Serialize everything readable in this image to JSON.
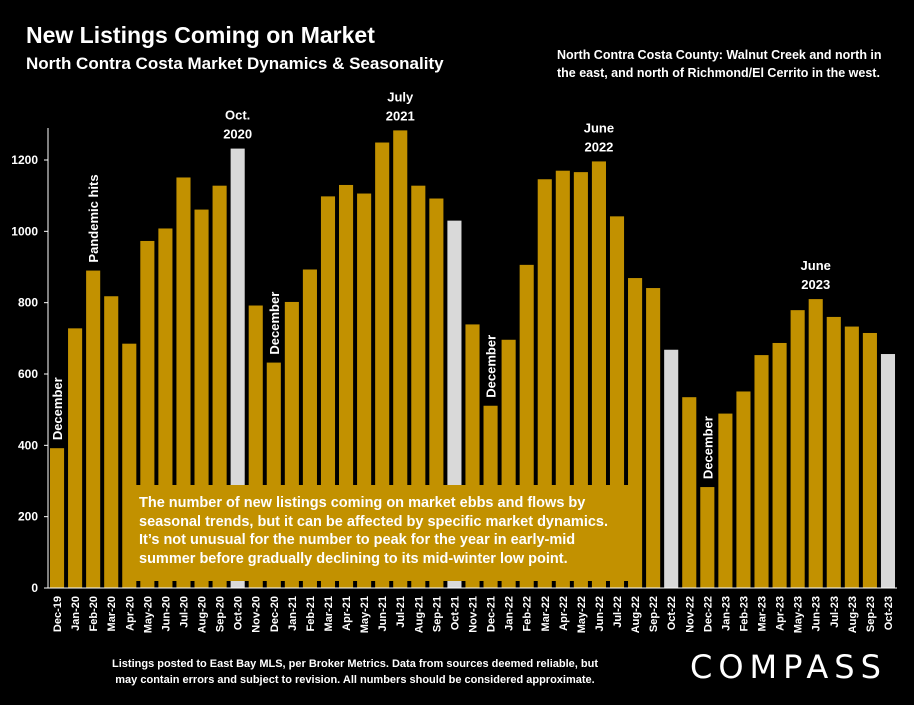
{
  "header": {
    "title": "New Listings Coming on Market",
    "subtitle": "North Contra Costa Market Dynamics & Seasonality",
    "region_note": "North Contra Costa County: Walnut Creek and north in the east, and north of Richmond/El Cerrito in the west."
  },
  "callout": {
    "text": "The number of new listings coming on market ebbs and flows by seasonal trends, but it can be affected by specific market dynamics. It’s not unusual for the number to peak for the year in early-mid summer before gradually declining to its mid-winter low point."
  },
  "footer": {
    "line1": "Listings posted to East Bay MLS, per Broker Metrics.  Data from sources deemed reliable, but",
    "line2": "may contain errors and subject to revision. All numbers should be considered approximate."
  },
  "brand": {
    "logo_text": "COMPASS"
  },
  "colors": {
    "bar": "#c29100",
    "highlight_bar": "#d9d9d9",
    "background": "#000000",
    "axis": "#ffffff"
  },
  "chart_data": {
    "type": "bar",
    "categories": [
      "Dec-19",
      "Jan-20",
      "Feb-20",
      "Mar-20",
      "Apr-20",
      "May-20",
      "Jun-20",
      "Jul-20",
      "Aug-20",
      "Sep-20",
      "Oct-20",
      "Nov-20",
      "Dec-20",
      "Jan-21",
      "Feb-21",
      "Mar-21",
      "Apr-21",
      "May-21",
      "Jun-21",
      "Jul-21",
      "Aug-21",
      "Sep-21",
      "Oct-21",
      "Nov-21",
      "Dec-21",
      "Jan-22",
      "Feb-22",
      "Mar-22",
      "Apr-22",
      "May-22",
      "Jun-22",
      "Jul-22",
      "Aug-22",
      "Sep-22",
      "Oct-22",
      "Nov-22",
      "Dec-22",
      "Jan-23",
      "Feb-23",
      "Mar-23",
      "Apr-23",
      "May-23",
      "Jun-23",
      "Jul-23",
      "Aug-23",
      "Sep-23",
      "Oct-23"
    ],
    "values": [
      392,
      728,
      890,
      818,
      685,
      973,
      1008,
      1151,
      1061,
      1128,
      1232,
      792,
      632,
      802,
      893,
      1098,
      1130,
      1106,
      1249,
      1283,
      1128,
      1092,
      1030,
      739,
      511,
      696,
      906,
      1146,
      1170,
      1166,
      1196,
      1042,
      869,
      841,
      668,
      535,
      283,
      489,
      551,
      653,
      687,
      779,
      810,
      760,
      733,
      715,
      656
    ],
    "highlighted": [
      "Oct-20",
      "Oct-21",
      "Oct-22",
      "Oct-23"
    ],
    "ylim": [
      0,
      1300
    ],
    "yticks": [
      0,
      200,
      400,
      600,
      800,
      1000,
      1200
    ],
    "annotations": [
      {
        "category": "Dec-19",
        "text": "December",
        "rotated": true
      },
      {
        "category": "Feb-20",
        "text": "Pandemic hits",
        "rotated": true
      },
      {
        "category": "Oct-20",
        "text": "Oct.\n2020",
        "rotated": false
      },
      {
        "category": "Dec-20",
        "text": "December",
        "rotated": true
      },
      {
        "category": "Jul-21",
        "text": "July\n2021",
        "rotated": false
      },
      {
        "category": "Dec-21",
        "text": "December",
        "rotated": true
      },
      {
        "category": "Jun-22",
        "text": "June\n2022",
        "rotated": false
      },
      {
        "category": "Dec-22",
        "text": "December",
        "rotated": true
      },
      {
        "category": "Jun-23",
        "text": "June\n2023",
        "rotated": false
      }
    ],
    "grid": false,
    "legend": "none"
  }
}
